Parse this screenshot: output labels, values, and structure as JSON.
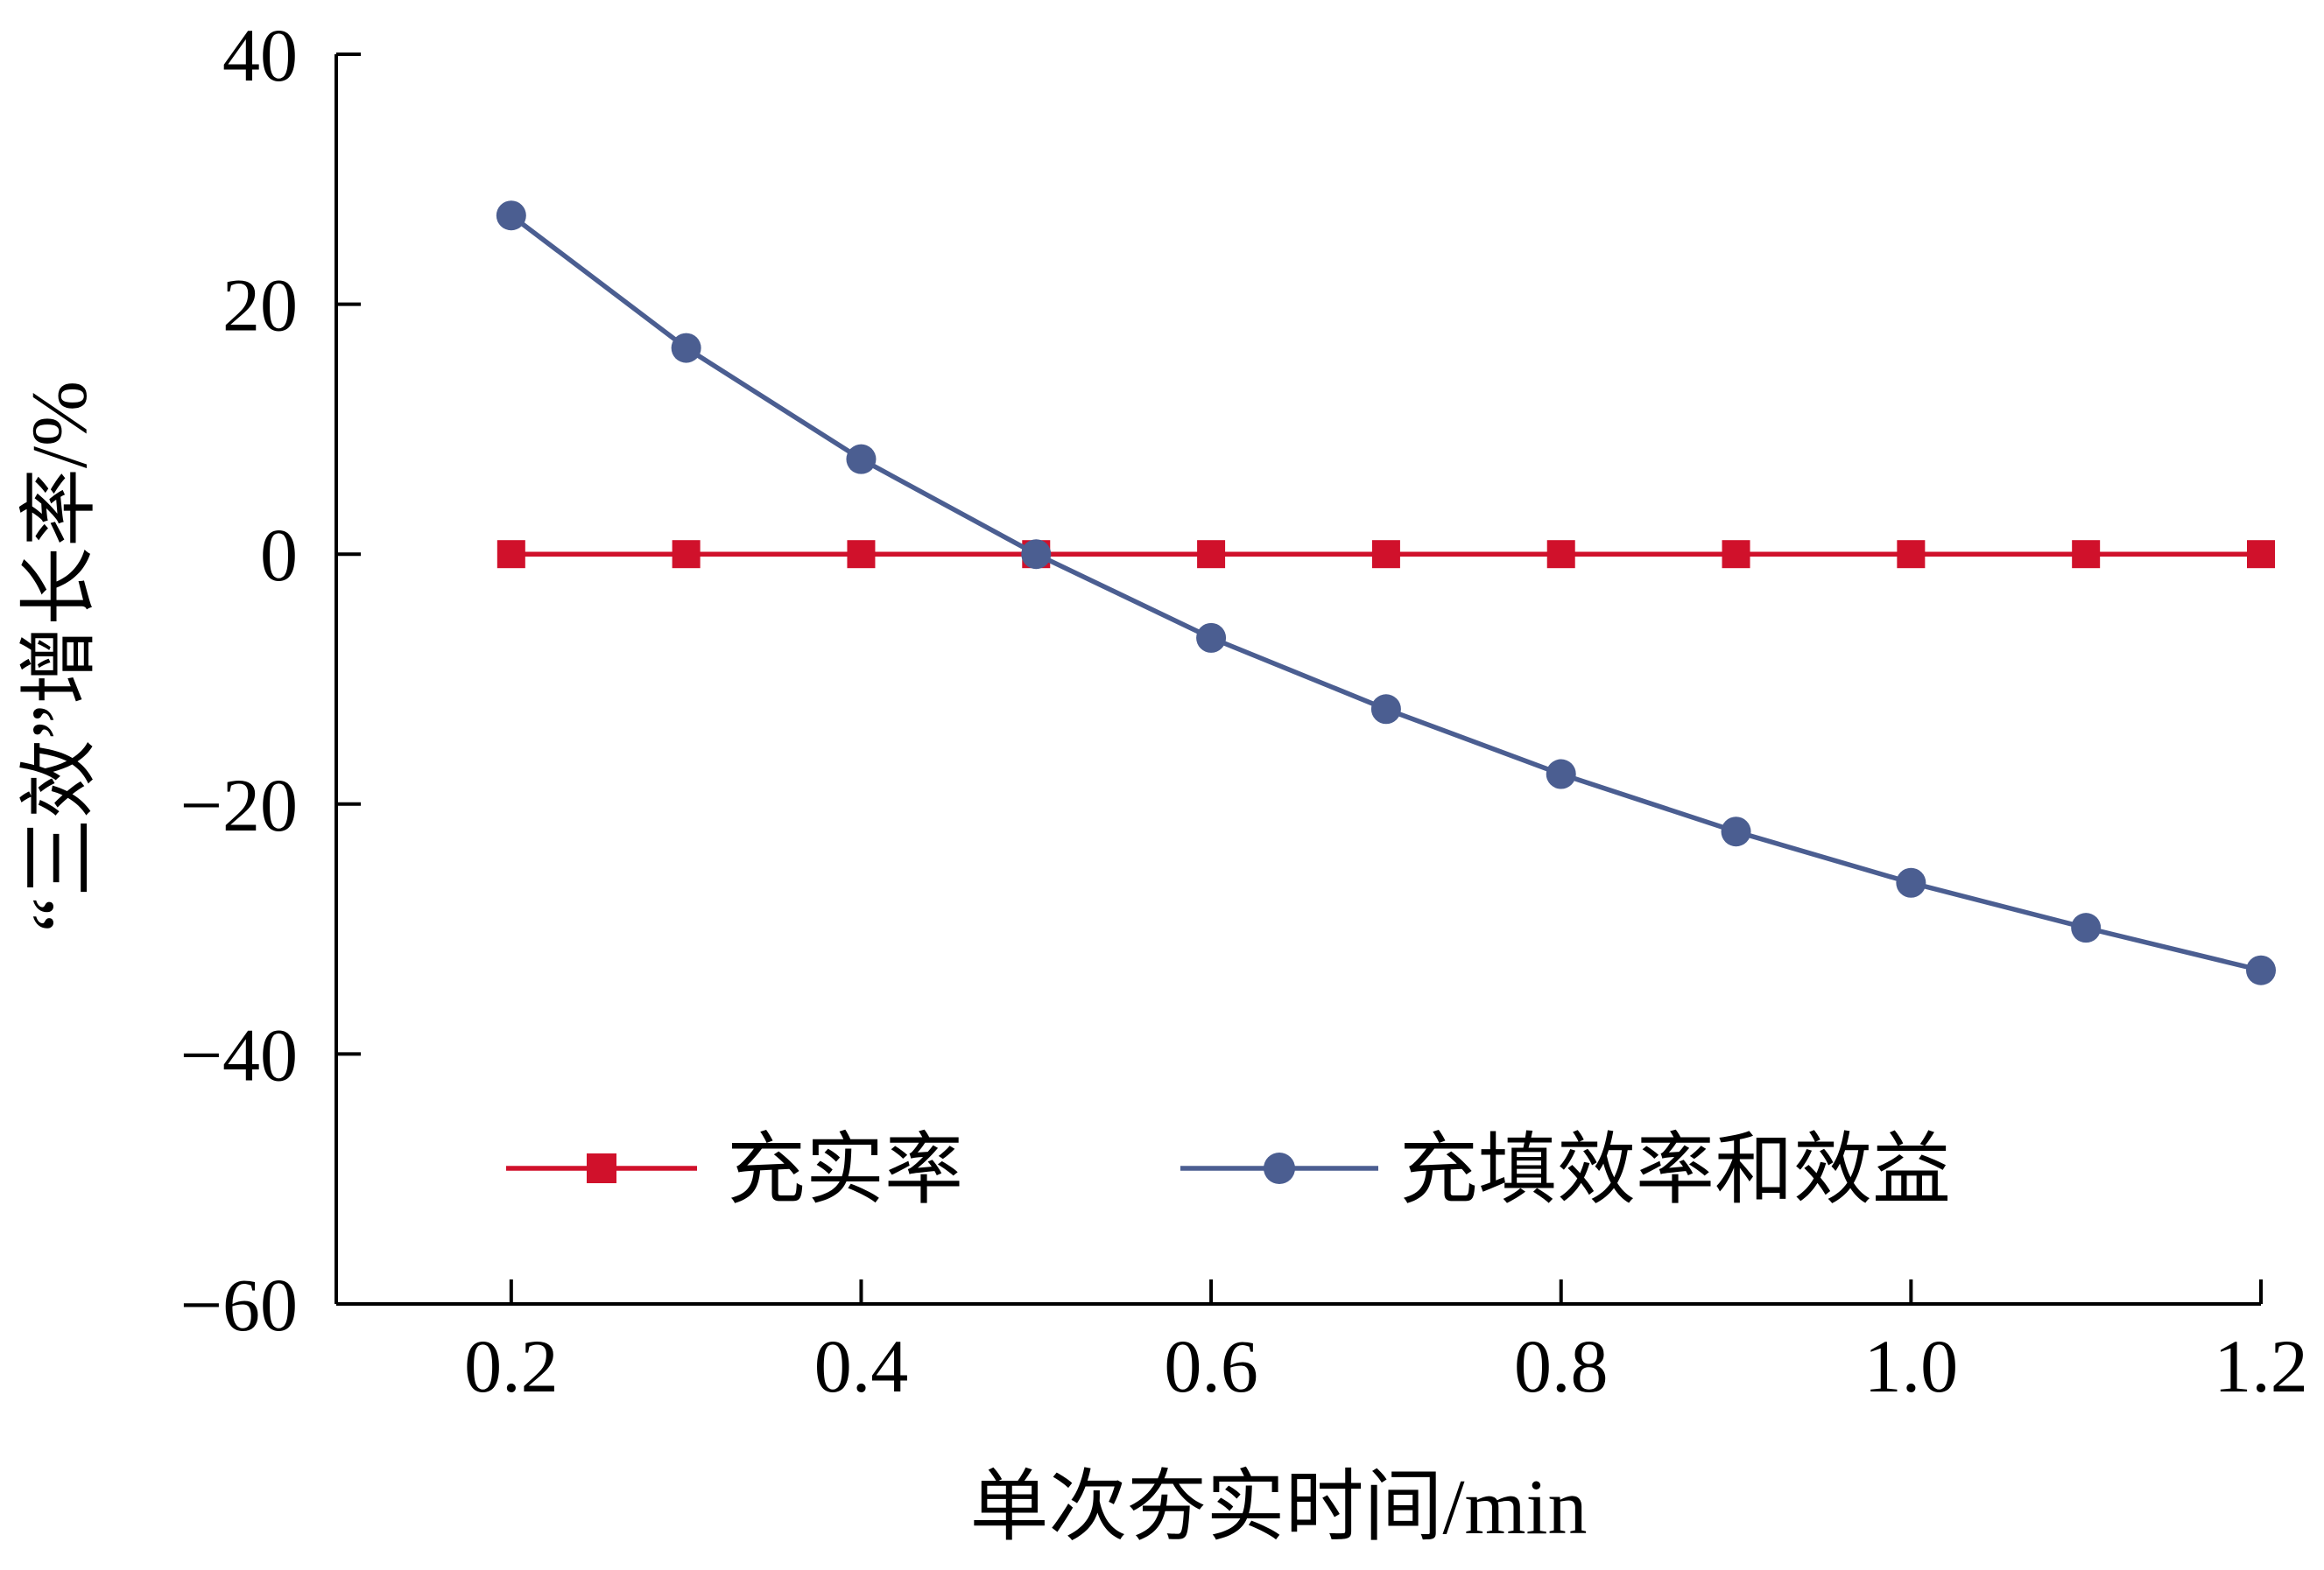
{
  "chart_data": {
    "type": "line",
    "title": "",
    "xlabel": "单次夯实时间/min",
    "ylabel": "“三效”增长率/%",
    "x": [
      0.2,
      0.3,
      0.4,
      0.5,
      0.6,
      0.7,
      0.8,
      0.9,
      1.0,
      1.1,
      1.2
    ],
    "xlim": [
      0.1,
      1.2
    ],
    "ylim": [
      -60,
      40
    ],
    "xticks": [
      "0.2",
      "0.4",
      "0.6",
      "0.8",
      "1.0",
      "1.2"
    ],
    "yticks": [
      "40",
      "20",
      "0",
      "−20",
      "−40",
      "−60"
    ],
    "grid": false,
    "legend_position": "lower-center",
    "series": [
      {
        "name": "充实率",
        "marker": "square",
        "color": "#d0112b",
        "values": [
          0,
          0,
          0,
          0,
          0,
          0,
          0,
          0,
          0,
          0,
          0
        ]
      },
      {
        "name": "充填效率和效益",
        "marker": "circle",
        "color": "#4b5e91",
        "values": [
          27.1,
          16.5,
          7.6,
          0,
          -6.7,
          -12.4,
          -17.6,
          -22.2,
          -26.3,
          -29.9,
          -33.3
        ]
      }
    ]
  }
}
